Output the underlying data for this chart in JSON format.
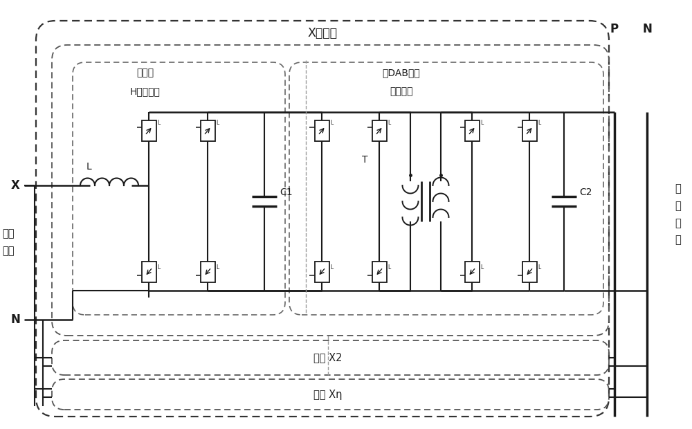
{
  "bg_color": "#ffffff",
  "line_color": "#1a1a1a",
  "fig_width": 10.0,
  "fig_height": 6.2,
  "labels": {
    "x_phase": "X",
    "n_bot": "N",
    "ac_input": "交流\n输入",
    "dc_output": "直\n流\n输\n出",
    "p_label": "P",
    "n_right": "N",
    "l_label": "L",
    "c1_label": "C1",
    "c2_label": "C2",
    "t_label": "T",
    "x_system": "X相系统",
    "cascade_line1": "级联型",
    "cascade_line2": "H桥变流器",
    "dab_line1": "多DAB输出",
    "dab_line2": "并联系统",
    "unit_x2": "单元 X2",
    "unit_xn": "单元 Xη"
  }
}
